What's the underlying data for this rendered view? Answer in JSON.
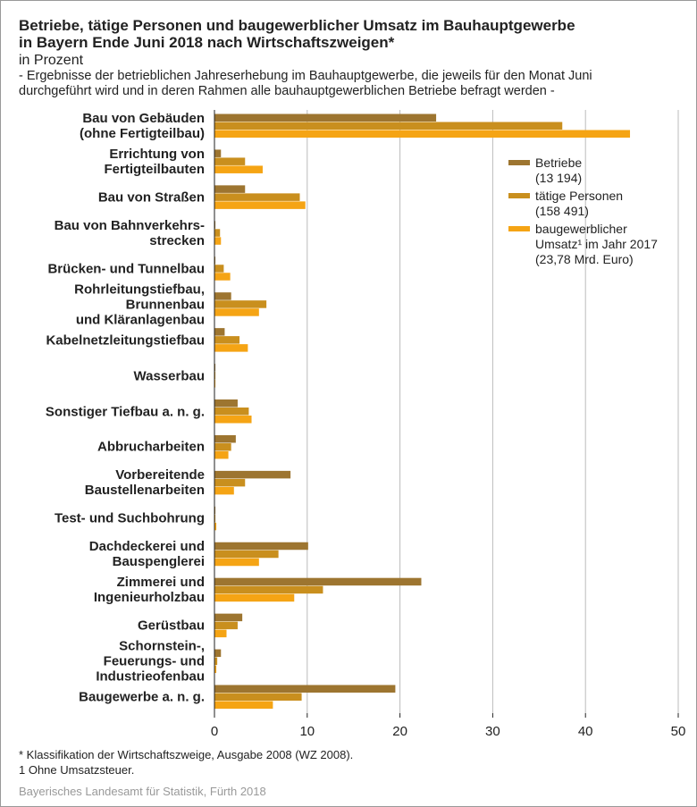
{
  "chart_data": {
    "type": "bar",
    "orientation": "horizontal",
    "title": "Betriebe, tätige Personen und baugewerblicher Umsatz im Bauhauptgewerbe\nin Bayern Ende Juni 2018 nach Wirtschaftszweigen*",
    "subtitle": "in Prozent",
    "description": "- Ergebnisse der betrieblichen Jahreserhebung im Bauhauptgewerbe, die jeweils für den Monat Juni\ndurchgeführt wird und in deren Rahmen alle bauhauptgewerblichen Betriebe befragt werden -",
    "categories": [
      "Bau von Gebäuden\n(ohne Fertigteilbau)",
      "Errichtung von\nFertigteilbauten",
      "Bau von Straßen",
      "Bau von Bahnverkehrs-\nstrecken",
      "Brücken- und Tunnelbau",
      "Rohrleitungstiefbau,\nBrunnenbau\nund Kläranlagenbau",
      "Kabelnetzleitungstiefbau",
      "Wasserbau",
      "Sonstiger Tiefbau a. n. g.",
      "Abbrucharbeiten",
      "Vorbereitende\nBaustellenarbeiten",
      "Test- und Suchbohrung",
      "Dachdeckerei und\nBauspenglerei",
      "Zimmerei und\nIngenieurholzbau",
      "Gerüstbau",
      "Schornstein-,\nFeuerungs- und\nIndustrieofenbau",
      "Baugewerbe a. n. g."
    ],
    "series": [
      {
        "name": "Betriebe\n(13 194)",
        "color": "#9d7530",
        "values": [
          23.9,
          0.7,
          3.3,
          0.1,
          0.1,
          1.8,
          1.1,
          0.1,
          2.5,
          2.3,
          8.2,
          0.1,
          10.1,
          22.3,
          3.0,
          0.7,
          19.5
        ]
      },
      {
        "name": "tätige Personen\n(158 491)",
        "color": "#c98f1e",
        "values": [
          37.5,
          3.3,
          9.2,
          0.6,
          1.0,
          5.6,
          2.7,
          0.1,
          3.7,
          1.8,
          3.3,
          0.1,
          6.9,
          11.7,
          2.5,
          0.3,
          9.4
        ]
      },
      {
        "name": "baugewerblicher\nUmsatz¹ im Jahr 2017\n(23,78 Mrd. Euro)",
        "color": "#f5a414",
        "values": [
          44.8,
          5.2,
          9.8,
          0.7,
          1.7,
          4.8,
          3.6,
          0.1,
          4.0,
          1.5,
          2.1,
          0.2,
          4.8,
          8.6,
          1.3,
          0.2,
          6.3
        ]
      }
    ],
    "xlim": [
      0,
      50
    ],
    "xticks": [
      0,
      10,
      20,
      30,
      40,
      50
    ],
    "grid": true,
    "legend": "right",
    "footnotes": [
      "*  Klassifikation der Wirtschaftszweige, Ausgabe 2008 (WZ 2008).",
      "1  Ohne Umsatzsteuer."
    ],
    "source": "Bayerisches Landesamt für Statistik, Fürth 2018"
  }
}
